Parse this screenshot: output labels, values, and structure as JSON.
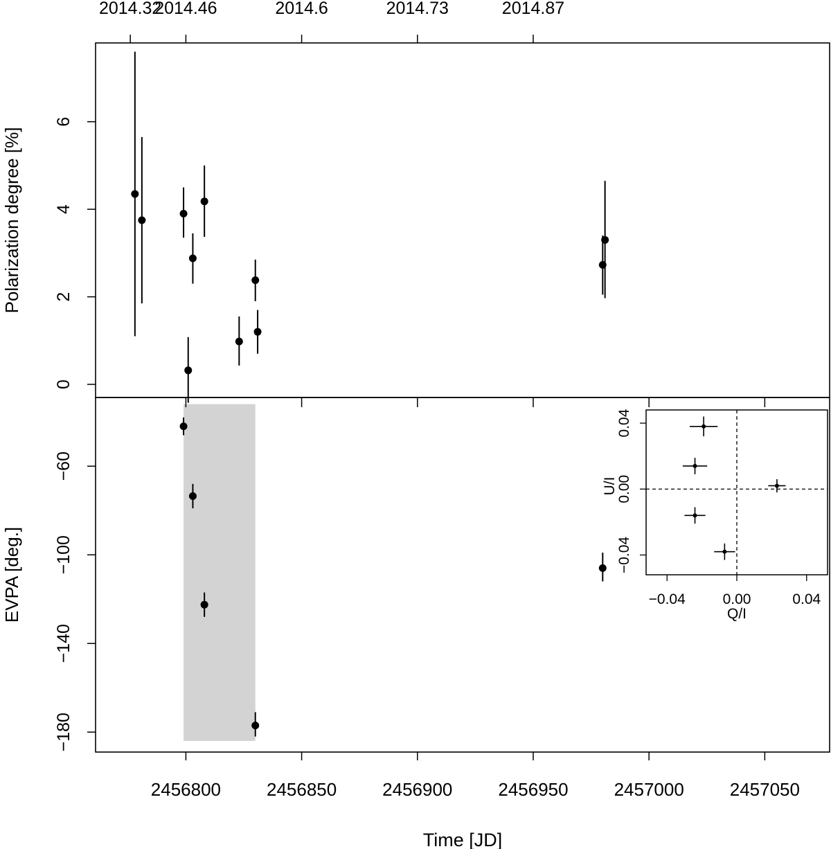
{
  "chart_data": [
    {
      "type": "scatter",
      "panel": "top",
      "title": "",
      "xlabel": "Time [JD]",
      "ylabel": "Polarization degree [%]",
      "xlim": [
        2456761,
        2457078
      ],
      "ylim": [
        -0.3,
        7.8
      ],
      "x_top_ticks": [
        {
          "x": 2456776,
          "label": "2014.32"
        },
        {
          "x": 2456800,
          "label": "2014.46"
        },
        {
          "x": 2456850,
          "label": "2014.6"
        },
        {
          "x": 2456900,
          "label": "2014.73"
        },
        {
          "x": 2456950,
          "label": "2014.87"
        }
      ],
      "y_ticks": [
        0,
        2,
        4,
        6
      ],
      "points": [
        {
          "x": 2456778,
          "y": 4.35,
          "ylo": 1.1,
          "yhi": 7.6
        },
        {
          "x": 2456781,
          "y": 3.75,
          "ylo": 1.85,
          "yhi": 5.65
        },
        {
          "x": 2456799,
          "y": 3.9,
          "ylo": 3.35,
          "yhi": 4.5
        },
        {
          "x": 2456801,
          "y": 0.32,
          "ylo": -0.42,
          "yhi": 1.08
        },
        {
          "x": 2456803,
          "y": 2.88,
          "ylo": 2.3,
          "yhi": 3.45
        },
        {
          "x": 2456808,
          "y": 4.18,
          "ylo": 3.37,
          "yhi": 5.0
        },
        {
          "x": 2456823,
          "y": 0.98,
          "ylo": 0.43,
          "yhi": 1.55
        },
        {
          "x": 2456830,
          "y": 2.38,
          "ylo": 1.9,
          "yhi": 2.85
        },
        {
          "x": 2456831,
          "y": 1.2,
          "ylo": 0.7,
          "yhi": 1.7
        },
        {
          "x": 2456980,
          "y": 2.73,
          "ylo": 2.05,
          "yhi": 3.4
        },
        {
          "x": 2456981,
          "y": 3.3,
          "ylo": 1.97,
          "yhi": 4.65
        }
      ]
    },
    {
      "type": "scatter",
      "panel": "bottom",
      "title": "",
      "xlabel": "Time [JD]",
      "ylabel": "EVPA [deg.]",
      "xlim": [
        2456761,
        2457078
      ],
      "ylim": [
        -189,
        -29
      ],
      "x_ticks": [
        2456800,
        2456850,
        2456900,
        2456950,
        2457000,
        2457050
      ],
      "x_tick_labels": [
        "2456800",
        "2456850",
        "2456900",
        "2456950",
        "2457000",
        "2457050"
      ],
      "y_ticks": [
        -60,
        -100,
        -140,
        -180
      ],
      "y_tick_labels": [
        "-60",
        "-100",
        "-140",
        "-180"
      ],
      "shaded_region": {
        "x": [
          2456799,
          2456830
        ],
        "y": [
          -184,
          -32
        ]
      },
      "points": [
        {
          "x": 2456799,
          "y": -42,
          "ylo": -46,
          "yhi": -38
        },
        {
          "x": 2456803,
          "y": -73.5,
          "ylo": -79,
          "yhi": -68
        },
        {
          "x": 2456808,
          "y": -122.5,
          "ylo": -128,
          "yhi": -117
        },
        {
          "x": 2456830,
          "y": -177,
          "ylo": -182,
          "yhi": -171
        },
        {
          "x": 2456980,
          "y": -106,
          "ylo": -112,
          "yhi": -99
        }
      ]
    },
    {
      "type": "scatter",
      "panel": "inset",
      "title": "",
      "xlabel": "Q/I",
      "ylabel": "U/I",
      "xlim": [
        -0.052,
        0.052
      ],
      "ylim": [
        -0.052,
        0.048
      ],
      "x_ticks": [
        -0.04,
        0.0,
        0.04
      ],
      "x_tick_labels": [
        "-0.04",
        "0.00",
        "0.04"
      ],
      "y_ticks": [
        0.04,
        0.0,
        -0.04
      ],
      "y_tick_labels": [
        "0.04",
        "0.00",
        "-0.04"
      ],
      "reference_lines": {
        "x": 0.0,
        "y": 0.0,
        "style": "dashed"
      },
      "points": [
        {
          "x": -0.019,
          "y": 0.038,
          "xerr": 0.008,
          "yerr": 0.006
        },
        {
          "x": -0.024,
          "y": 0.014,
          "xerr": 0.007,
          "yerr": 0.005
        },
        {
          "x": 0.023,
          "y": 0.002,
          "xerr": 0.005,
          "yerr": 0.004
        },
        {
          "x": -0.024,
          "y": -0.016,
          "xerr": 0.006,
          "yerr": 0.005
        },
        {
          "x": -0.007,
          "y": -0.038,
          "xerr": 0.006,
          "yerr": 0.005
        }
      ]
    }
  ]
}
